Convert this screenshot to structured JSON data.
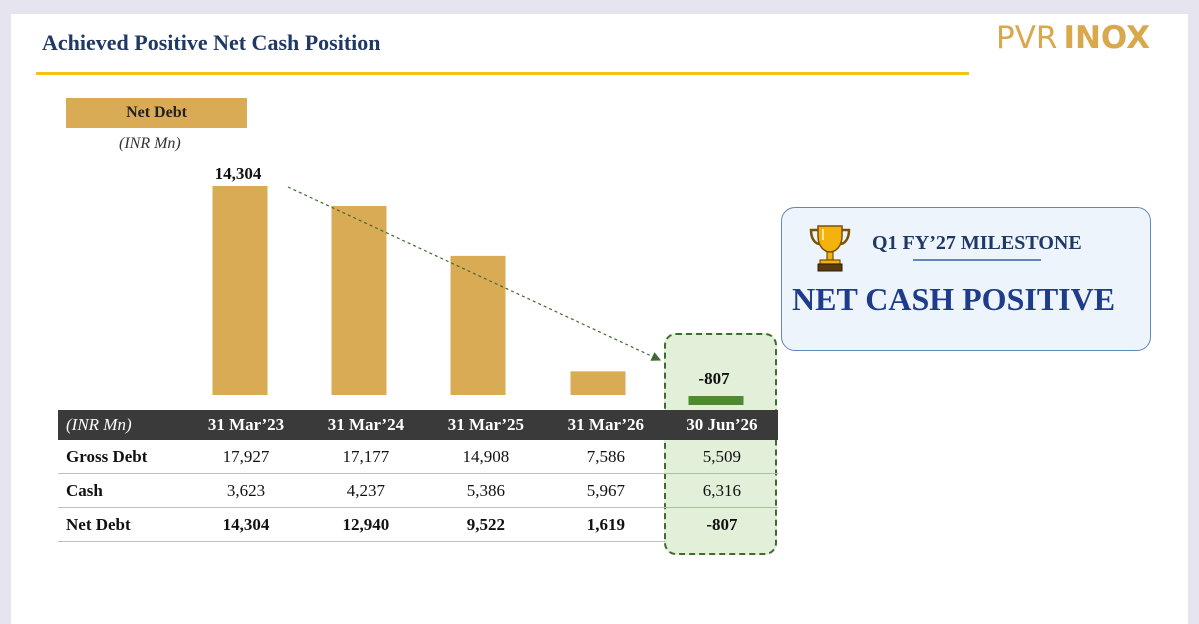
{
  "title": "Achieved Positive Net Cash Position",
  "logo": {
    "part1": "PVR",
    "part2": "INOX"
  },
  "net_debt_label": "Net Debt",
  "unit_label": "(INR Mn)",
  "colors": {
    "bar": "#d9ab55",
    "negative_bar": "#4e8a33",
    "title": "#1f3864",
    "header_bg": "#3a3a3a",
    "highlight_bg": "#e2efd9"
  },
  "chart_data": {
    "type": "bar",
    "categories": [
      "31 Mar'23",
      "31 Mar'24",
      "31 Mar'25",
      "31 Mar'26",
      "30 Jun'26"
    ],
    "values": [
      14304,
      12940,
      9522,
      1619,
      -807
    ],
    "data_labels": [
      "14,304",
      "",
      "",
      "",
      "-807"
    ],
    "xlabel": "",
    "ylabel": "",
    "ylim": [
      -1000,
      15000
    ],
    "grid": false,
    "trend_arrow": {
      "from_category": "31 Mar'23",
      "to_category": "30 Jun'26",
      "style": "dashed"
    }
  },
  "table": {
    "unit_header": "(INR Mn)",
    "columns": [
      "31 Mar’23",
      "31 Mar’24",
      "31 Mar’25",
      "31 Mar’26",
      "30 Jun’26"
    ],
    "rows": [
      {
        "label": "Gross Debt",
        "values": [
          "17,927",
          "17,177",
          "14,908",
          "7,586",
          "5,509"
        ]
      },
      {
        "label": "Cash",
        "values": [
          "3,623",
          "4,237",
          "5,386",
          "5,967",
          "6,316"
        ]
      },
      {
        "label": "Net Debt",
        "values": [
          "14,304",
          "12,940",
          "9,522",
          "1,619",
          "-807"
        ]
      }
    ]
  },
  "milestone": {
    "icon": "trophy-icon",
    "subtitle": "Q1 FY’27 MILESTONE",
    "headline": "NET CASH POSITIVE"
  }
}
